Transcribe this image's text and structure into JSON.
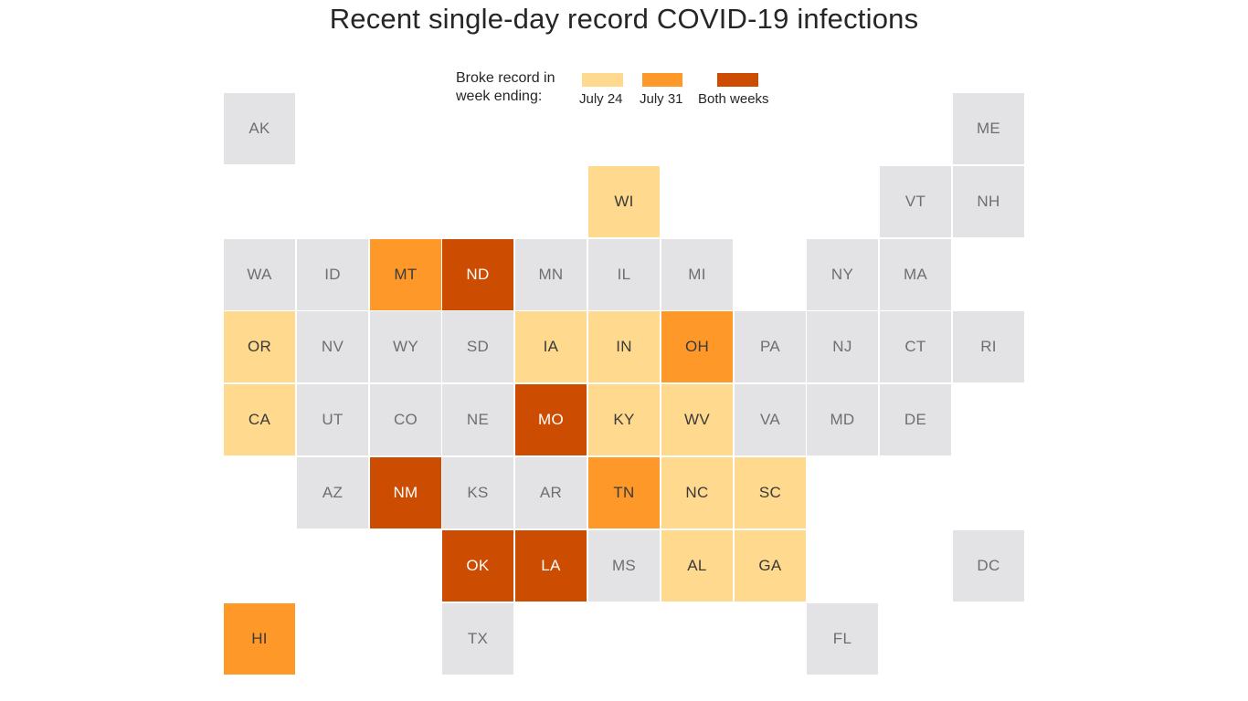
{
  "title": "Recent single-day record COVID-19 infections",
  "legend": {
    "title_line1": "Broke record in",
    "title_line2": "week ending:",
    "items": [
      {
        "key": "jul24",
        "label": "July 24",
        "color": "#fed98e"
      },
      {
        "key": "jul31",
        "label": "July 31",
        "color": "#fe9929"
      },
      {
        "key": "both",
        "label": "Both weeks",
        "color": "#cc4c02"
      }
    ]
  },
  "colors": {
    "none": "#e3e3e5",
    "jul24": "#fed98e",
    "jul31": "#fe9929",
    "both": "#cc4c02",
    "text_dark": "#6e6e70",
    "text_mid": "#3a3a3a",
    "text_light": "#ffffff"
  },
  "chart_data": {
    "type": "tile-grid-map",
    "categories": [
      "none",
      "jul24",
      "jul31",
      "both"
    ],
    "states": [
      {
        "abbr": "AK",
        "col": 0,
        "row": 0,
        "status": "none"
      },
      {
        "abbr": "ME",
        "col": 10,
        "row": 0,
        "status": "none"
      },
      {
        "abbr": "WI",
        "col": 5,
        "row": 1,
        "status": "jul24"
      },
      {
        "abbr": "VT",
        "col": 9,
        "row": 1,
        "status": "none"
      },
      {
        "abbr": "NH",
        "col": 10,
        "row": 1,
        "status": "none"
      },
      {
        "abbr": "WA",
        "col": 0,
        "row": 2,
        "status": "none"
      },
      {
        "abbr": "ID",
        "col": 1,
        "row": 2,
        "status": "none"
      },
      {
        "abbr": "MT",
        "col": 2,
        "row": 2,
        "status": "jul31"
      },
      {
        "abbr": "ND",
        "col": 3,
        "row": 2,
        "status": "both"
      },
      {
        "abbr": "MN",
        "col": 4,
        "row": 2,
        "status": "none"
      },
      {
        "abbr": "IL",
        "col": 5,
        "row": 2,
        "status": "none"
      },
      {
        "abbr": "MI",
        "col": 6,
        "row": 2,
        "status": "none"
      },
      {
        "abbr": "NY",
        "col": 8,
        "row": 2,
        "status": "none"
      },
      {
        "abbr": "MA",
        "col": 9,
        "row": 2,
        "status": "none"
      },
      {
        "abbr": "OR",
        "col": 0,
        "row": 3,
        "status": "jul24"
      },
      {
        "abbr": "NV",
        "col": 1,
        "row": 3,
        "status": "none"
      },
      {
        "abbr": "WY",
        "col": 2,
        "row": 3,
        "status": "none"
      },
      {
        "abbr": "SD",
        "col": 3,
        "row": 3,
        "status": "none"
      },
      {
        "abbr": "IA",
        "col": 4,
        "row": 3,
        "status": "jul24"
      },
      {
        "abbr": "IN",
        "col": 5,
        "row": 3,
        "status": "jul24"
      },
      {
        "abbr": "OH",
        "col": 6,
        "row": 3,
        "status": "jul31"
      },
      {
        "abbr": "PA",
        "col": 7,
        "row": 3,
        "status": "none"
      },
      {
        "abbr": "NJ",
        "col": 8,
        "row": 3,
        "status": "none"
      },
      {
        "abbr": "CT",
        "col": 9,
        "row": 3,
        "status": "none"
      },
      {
        "abbr": "RI",
        "col": 10,
        "row": 3,
        "status": "none"
      },
      {
        "abbr": "CA",
        "col": 0,
        "row": 4,
        "status": "jul24"
      },
      {
        "abbr": "UT",
        "col": 1,
        "row": 4,
        "status": "none"
      },
      {
        "abbr": "CO",
        "col": 2,
        "row": 4,
        "status": "none"
      },
      {
        "abbr": "NE",
        "col": 3,
        "row": 4,
        "status": "none"
      },
      {
        "abbr": "MO",
        "col": 4,
        "row": 4,
        "status": "both"
      },
      {
        "abbr": "KY",
        "col": 5,
        "row": 4,
        "status": "jul24"
      },
      {
        "abbr": "WV",
        "col": 6,
        "row": 4,
        "status": "jul24"
      },
      {
        "abbr": "VA",
        "col": 7,
        "row": 4,
        "status": "none"
      },
      {
        "abbr": "MD",
        "col": 8,
        "row": 4,
        "status": "none"
      },
      {
        "abbr": "DE",
        "col": 9,
        "row": 4,
        "status": "none"
      },
      {
        "abbr": "AZ",
        "col": 1,
        "row": 5,
        "status": "none"
      },
      {
        "abbr": "NM",
        "col": 2,
        "row": 5,
        "status": "both"
      },
      {
        "abbr": "KS",
        "col": 3,
        "row": 5,
        "status": "none"
      },
      {
        "abbr": "AR",
        "col": 4,
        "row": 5,
        "status": "none"
      },
      {
        "abbr": "TN",
        "col": 5,
        "row": 5,
        "status": "jul31"
      },
      {
        "abbr": "NC",
        "col": 6,
        "row": 5,
        "status": "jul24"
      },
      {
        "abbr": "SC",
        "col": 7,
        "row": 5,
        "status": "jul24"
      },
      {
        "abbr": "OK",
        "col": 3,
        "row": 6,
        "status": "both"
      },
      {
        "abbr": "LA",
        "col": 4,
        "row": 6,
        "status": "both"
      },
      {
        "abbr": "MS",
        "col": 5,
        "row": 6,
        "status": "none"
      },
      {
        "abbr": "AL",
        "col": 6,
        "row": 6,
        "status": "jul24"
      },
      {
        "abbr": "GA",
        "col": 7,
        "row": 6,
        "status": "jul24"
      },
      {
        "abbr": "DC",
        "col": 10,
        "row": 6,
        "status": "none"
      },
      {
        "abbr": "HI",
        "col": 0,
        "row": 7,
        "status": "jul31"
      },
      {
        "abbr": "TX",
        "col": 3,
        "row": 7,
        "status": "none"
      },
      {
        "abbr": "FL",
        "col": 8,
        "row": 7,
        "status": "none"
      }
    ]
  }
}
